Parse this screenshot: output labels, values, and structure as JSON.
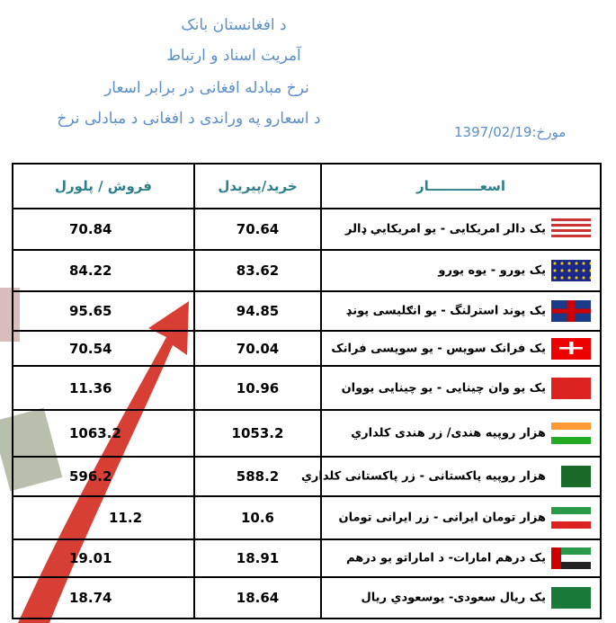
{
  "header": {
    "lines": [
      "د افغانستان بانک",
      "آمریت اسناد و ارتباط",
      "نرخ مبادله افغانی در برابر اسعار",
      "د اسعارو په وراندی د افغانی د مبادلی نرخ"
    ],
    "date_label": "مورخ:",
    "date": "1397/02/19"
  },
  "table": {
    "columns": [
      "فروش / پلورل",
      "خرید/پیریدل",
      "اسعـــــــــــار"
    ],
    "rows": [
      {
        "currency": "یک دالر امریکایی - یو امریکایي ډالر",
        "flag": "usa-flag",
        "buy": "70.64",
        "sell": "70.84"
      },
      {
        "currency": "یک یورو - یوه یورو",
        "flag": "eu-flag",
        "buy": "83.62",
        "sell": "84.22"
      },
      {
        "currency": "یک پوند استرلنگ -  یو انګلیسی پونډ",
        "flag": "uk-flag",
        "buy": "94.85",
        "sell": "95.65"
      },
      {
        "currency": "یک فرانک سویس - یو سویسی فرانک",
        "flag": "swiss-flag",
        "buy": "70.04",
        "sell": "70.54"
      },
      {
        "currency": "یک یو وان چینایی - یو چینایی یووان",
        "flag": "china-flag",
        "buy": "10.96",
        "sell": "11.36"
      },
      {
        "currency": "هزار روپیه هندی/ زر هندی کلداري",
        "flag": "india-flag",
        "buy": "1053.2",
        "sell": "1063.2"
      },
      {
        "currency": "هزار روپیه پاکستانی - زر  پاکستانی کلداري",
        "flag": "pakistan-flag",
        "buy": "588.2",
        "sell": "596.2"
      },
      {
        "currency": "هزار تومان ایرانی -  زر ایرانی تومان",
        "flag": "iran-flag",
        "buy": "10.6",
        "sell": "11.2"
      },
      {
        "currency": "یک درهم امارات-  د اماراتو یو درهم",
        "flag": "uae-flag",
        "buy": "18.91",
        "sell": "19.01"
      },
      {
        "currency": "یک ریال سعودی- یوسعودي ریال",
        "flag": "saudi-flag",
        "buy": "18.64",
        "sell": "18.74"
      }
    ]
  },
  "colors": {
    "header_text": "#5b8fc9",
    "column_header": "#2e7f8c",
    "arrow": "#d42a1e"
  }
}
